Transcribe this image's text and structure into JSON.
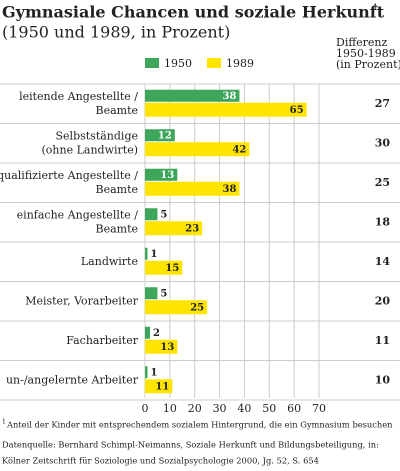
{
  "chart_data": {
    "type": "bar",
    "orientation": "horizontal",
    "title": "Gymnasiale Chancen und soziale Herkunft",
    "title_note_marker": "1",
    "subtitle": "(1950 und 1989, in Prozent)",
    "categories": [
      [
        "leitende Angestellte /",
        "Beamte"
      ],
      [
        "Selbstständige",
        "(ohne Landwirte)"
      ],
      [
        "qualifizierte Angestellte /",
        "Beamte"
      ],
      [
        "einfache Angestellte /",
        "Beamte"
      ],
      [
        "Landwirte"
      ],
      [
        "Meister, Vorarbeiter"
      ],
      [
        "Facharbeiter"
      ],
      [
        "un-/angelernte Arbeiter"
      ]
    ],
    "series": [
      {
        "name": "1950",
        "color": "#3da65a",
        "values": [
          38,
          12,
          13,
          5,
          1,
          5,
          2,
          1
        ]
      },
      {
        "name": "1989",
        "color": "#ffe400",
        "values": [
          65,
          42,
          38,
          23,
          15,
          25,
          13,
          11
        ]
      }
    ],
    "difference_header": [
      "Differenz",
      "1950-1989",
      "(in Prozent)"
    ],
    "differences": [
      27,
      30,
      25,
      18,
      14,
      20,
      11,
      10
    ],
    "xlim": [
      0,
      70
    ],
    "xticks": [
      0,
      10,
      20,
      30,
      40,
      50,
      60,
      70
    ],
    "grid": true,
    "footnote": {
      "marker": "1",
      "text": "Anteil der Kinder mit entsprechendem sozialem Hintergrund, die ein Gymnasium besuchen"
    },
    "source": [
      "Datenquelle: Bernhard Schimpl-Neimanns, Soziale Herkunft und Bildungsbeteiligung, in:",
      "Kölner Zeitschrift für Soziologie und Sozialpsychologie 2000, Jg. 52, S. 654"
    ]
  }
}
